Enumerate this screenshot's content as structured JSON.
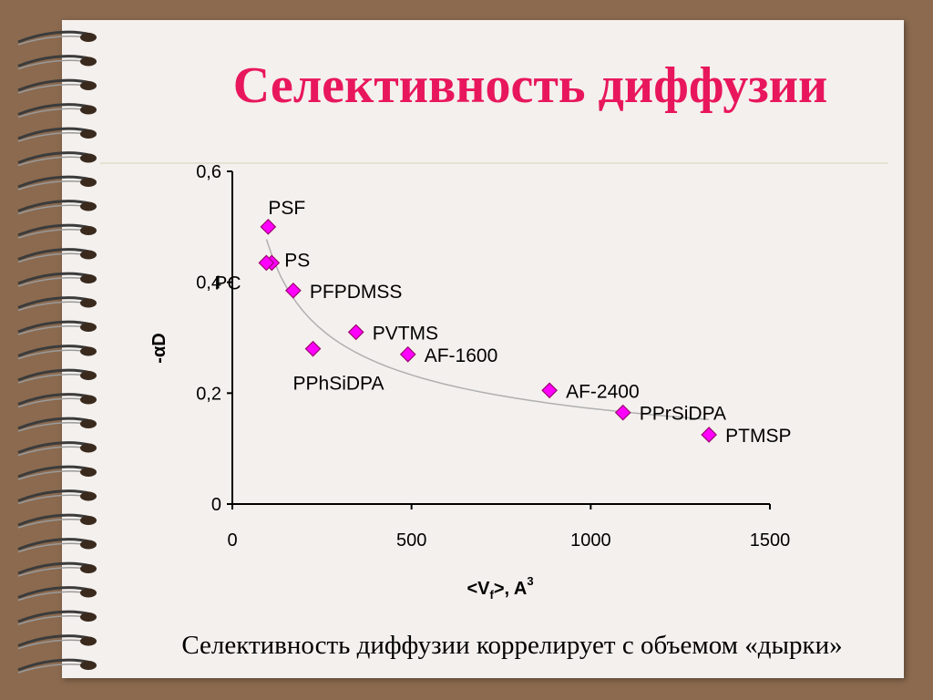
{
  "slide": {
    "title": "Селективность диффузии",
    "caption": "Селективность диффузии коррелирует с объемом «дырки»"
  },
  "colors": {
    "background": "#8b6a4f",
    "page": "#f4f0ed",
    "title": "#e8175d",
    "marker_fill": "#ff00ff",
    "marker_stroke": "#9b006e",
    "trend": "#b0b0b0"
  },
  "chart_data": {
    "type": "scatter",
    "xlim": [
      0,
      1500
    ],
    "ylim": [
      0,
      0.6
    ],
    "x_ticks": [
      "0",
      "500",
      "1000",
      "1500"
    ],
    "y_ticks": [
      "0",
      "0,2",
      "0,4",
      "0,6"
    ],
    "xlabel": {
      "main": "<V",
      "sub": "f",
      "mid": ">, A",
      "sup": "3"
    },
    "ylabel": "-αD",
    "grid": false,
    "trendline": "power",
    "points": [
      {
        "label": "PSF",
        "x": 100,
        "y": 0.5
      },
      {
        "label": "PS",
        "x": 110,
        "y": 0.435
      },
      {
        "label": "PC",
        "x": 95,
        "y": 0.435
      },
      {
        "label": "PFPDMSS",
        "x": 170,
        "y": 0.385
      },
      {
        "label": "PVTMS",
        "x": 345,
        "y": 0.31
      },
      {
        "label": "PPhSiDPA",
        "x": 225,
        "y": 0.28
      },
      {
        "label": "AF-1600",
        "x": 490,
        "y": 0.27
      },
      {
        "label": "AF-2400",
        "x": 885,
        "y": 0.205
      },
      {
        "label": "PPrSiDPA",
        "x": 1090,
        "y": 0.165
      },
      {
        "label": "PTMSP",
        "x": 1330,
        "y": 0.125
      }
    ]
  }
}
